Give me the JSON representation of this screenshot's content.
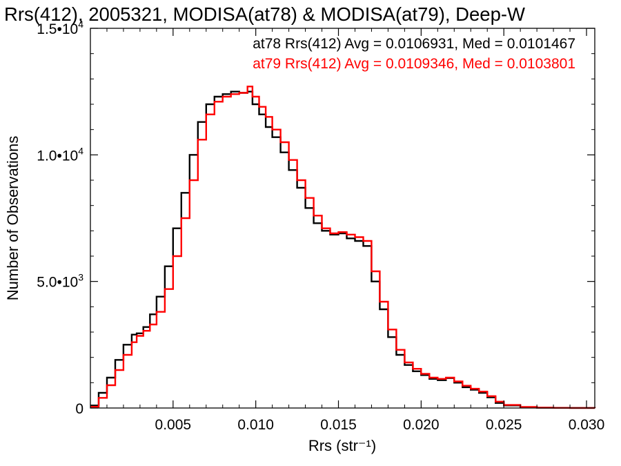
{
  "chart_data": {
    "type": "line",
    "style": "histogram-step",
    "title": "Rrs(412), 2005321, MODISA(at78) & MODISA(at79), Deep-W",
    "xlabel": "Rrs (str⁻¹)",
    "ylabel": "Number of Observations",
    "xlim": [
      0.0,
      0.0305
    ],
    "ylim": [
      0,
      15000
    ],
    "x_ticks": [
      0.005,
      0.01,
      0.015,
      0.02,
      0.025,
      0.03
    ],
    "x_tick_labels": [
      "0.005",
      "0.010",
      "0.015",
      "0.020",
      "0.025",
      "0.030"
    ],
    "y_ticks": [
      0,
      5000,
      10000,
      15000
    ],
    "y_tick_labels": [
      {
        "mant": "0",
        "exp": ""
      },
      {
        "mant": "5.0•10",
        "exp": "3"
      },
      {
        "mant": "1.0•10",
        "exp": "4"
      },
      {
        "mant": "1.5•10",
        "exp": "4"
      }
    ],
    "grid": false,
    "annotations": [
      {
        "text": "at78 Rrs(412) Avg = 0.0106931, Med = 0.0101467",
        "color": "#000000"
      },
      {
        "text": "at79 Rrs(412) Avg = 0.0109346, Med = 0.0103801",
        "color": "#ff0000"
      }
    ],
    "series": [
      {
        "color": "#000000",
        "x": [
          0.0,
          0.0005,
          0.001,
          0.0015,
          0.002,
          0.0025,
          0.0028,
          0.0032,
          0.0036,
          0.004,
          0.0045,
          0.005,
          0.0055,
          0.006,
          0.0065,
          0.007,
          0.0075,
          0.008,
          0.0085,
          0.009,
          0.0095,
          0.0098,
          0.0102,
          0.0106,
          0.011,
          0.0115,
          0.012,
          0.0125,
          0.013,
          0.0135,
          0.014,
          0.0145,
          0.015,
          0.0155,
          0.016,
          0.0165,
          0.017,
          0.0175,
          0.018,
          0.0185,
          0.019,
          0.0195,
          0.02,
          0.0205,
          0.021,
          0.0215,
          0.022,
          0.0225,
          0.023,
          0.0235,
          0.024,
          0.0245,
          0.025,
          0.026,
          0.027,
          0.028,
          0.029,
          0.0305
        ],
        "y": [
          100,
          600,
          1200,
          1900,
          2500,
          2900,
          2950,
          3200,
          3700,
          4400,
          5600,
          7100,
          8500,
          10000,
          11300,
          12000,
          12300,
          12400,
          12500,
          12450,
          12500,
          12000,
          11600,
          11100,
          10700,
          10100,
          9400,
          8700,
          7900,
          7300,
          7000,
          6850,
          6900,
          6700,
          6600,
          6400,
          5000,
          3900,
          2800,
          2100,
          1700,
          1450,
          1300,
          1150,
          1100,
          1180,
          1000,
          820,
          720,
          600,
          420,
          200,
          100,
          30,
          10,
          5,
          2,
          0
        ]
      },
      {
        "color": "#ff0000",
        "x": [
          0.0,
          0.0005,
          0.001,
          0.0015,
          0.002,
          0.0025,
          0.0028,
          0.0032,
          0.0036,
          0.004,
          0.0045,
          0.005,
          0.0055,
          0.006,
          0.0065,
          0.007,
          0.0075,
          0.008,
          0.0085,
          0.009,
          0.0095,
          0.0098,
          0.0102,
          0.0106,
          0.011,
          0.0115,
          0.012,
          0.0125,
          0.013,
          0.0135,
          0.014,
          0.0145,
          0.015,
          0.0155,
          0.016,
          0.0165,
          0.017,
          0.0175,
          0.018,
          0.0185,
          0.019,
          0.0195,
          0.02,
          0.0205,
          0.021,
          0.0215,
          0.022,
          0.0225,
          0.023,
          0.0235,
          0.024,
          0.0245,
          0.025,
          0.026,
          0.027,
          0.028,
          0.029,
          0.0305
        ],
        "y": [
          50,
          400,
          900,
          1500,
          2100,
          2600,
          2850,
          3050,
          3300,
          3800,
          4700,
          6000,
          7500,
          9000,
          10600,
          11600,
          12100,
          12300,
          12400,
          12450,
          12700,
          12300,
          11900,
          11500,
          11000,
          10500,
          9800,
          9000,
          8300,
          7600,
          7100,
          6900,
          6950,
          6850,
          6750,
          6600,
          5400,
          4200,
          3100,
          2300,
          1800,
          1550,
          1350,
          1200,
          1150,
          1200,
          1050,
          880,
          760,
          650,
          470,
          250,
          120,
          40,
          15,
          6,
          2,
          0
        ]
      }
    ]
  }
}
